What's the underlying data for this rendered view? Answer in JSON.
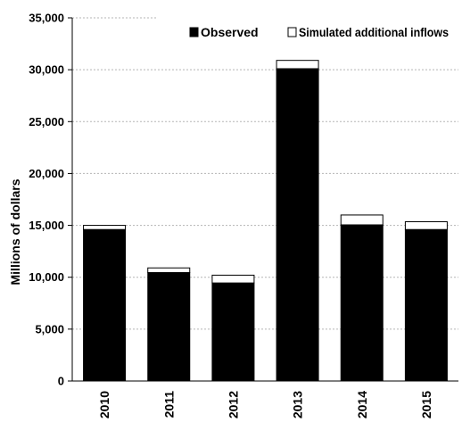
{
  "chart_data": {
    "type": "bar",
    "stacked": true,
    "categories": [
      "2010",
      "2011",
      "2012",
      "2013",
      "2014",
      "2015"
    ],
    "series": [
      {
        "name": "Observed",
        "color": "#000000",
        "values": [
          14600,
          10450,
          9450,
          30100,
          15050,
          14600
        ]
      },
      {
        "name": "Simulated additional inflows",
        "color": "#ffffff",
        "values": [
          400,
          450,
          750,
          800,
          950,
          750
        ]
      }
    ],
    "ylabel": "Millions of dollars",
    "ylim": [
      0,
      35000
    ],
    "yticks": [
      0,
      5000,
      10000,
      15000,
      20000,
      25000,
      30000,
      35000
    ],
    "ytick_labels": [
      "0",
      "5,000",
      "10,000",
      "15,000",
      "20,000",
      "25,000",
      "30,000",
      "35,000"
    ],
    "grid": true,
    "legend_position": "top-right"
  }
}
